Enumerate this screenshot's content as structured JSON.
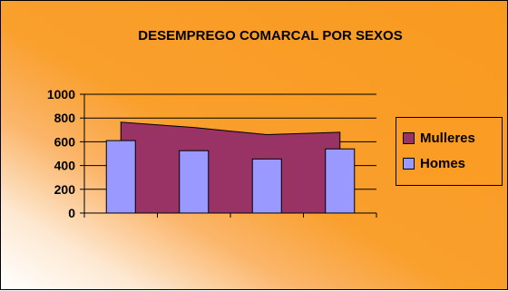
{
  "chart_data": {
    "type": "bar",
    "title": "DESEMPREGO COMARCAL POR SEXOS",
    "xlabel": "",
    "ylabel": "",
    "ylim": [
      0,
      1000
    ],
    "yticks": [
      0,
      200,
      400,
      600,
      800,
      1000
    ],
    "grid": true,
    "legend_position": "right",
    "categories": [
      "",
      "",
      "",
      ""
    ],
    "series": [
      {
        "name": "Mulleres",
        "type": "area",
        "color": "#993366",
        "values": [
          765,
          720,
          660,
          680
        ]
      },
      {
        "name": "Homes",
        "type": "bar",
        "color": "#9999ff",
        "values": [
          610,
          525,
          455,
          540
        ]
      }
    ]
  }
}
